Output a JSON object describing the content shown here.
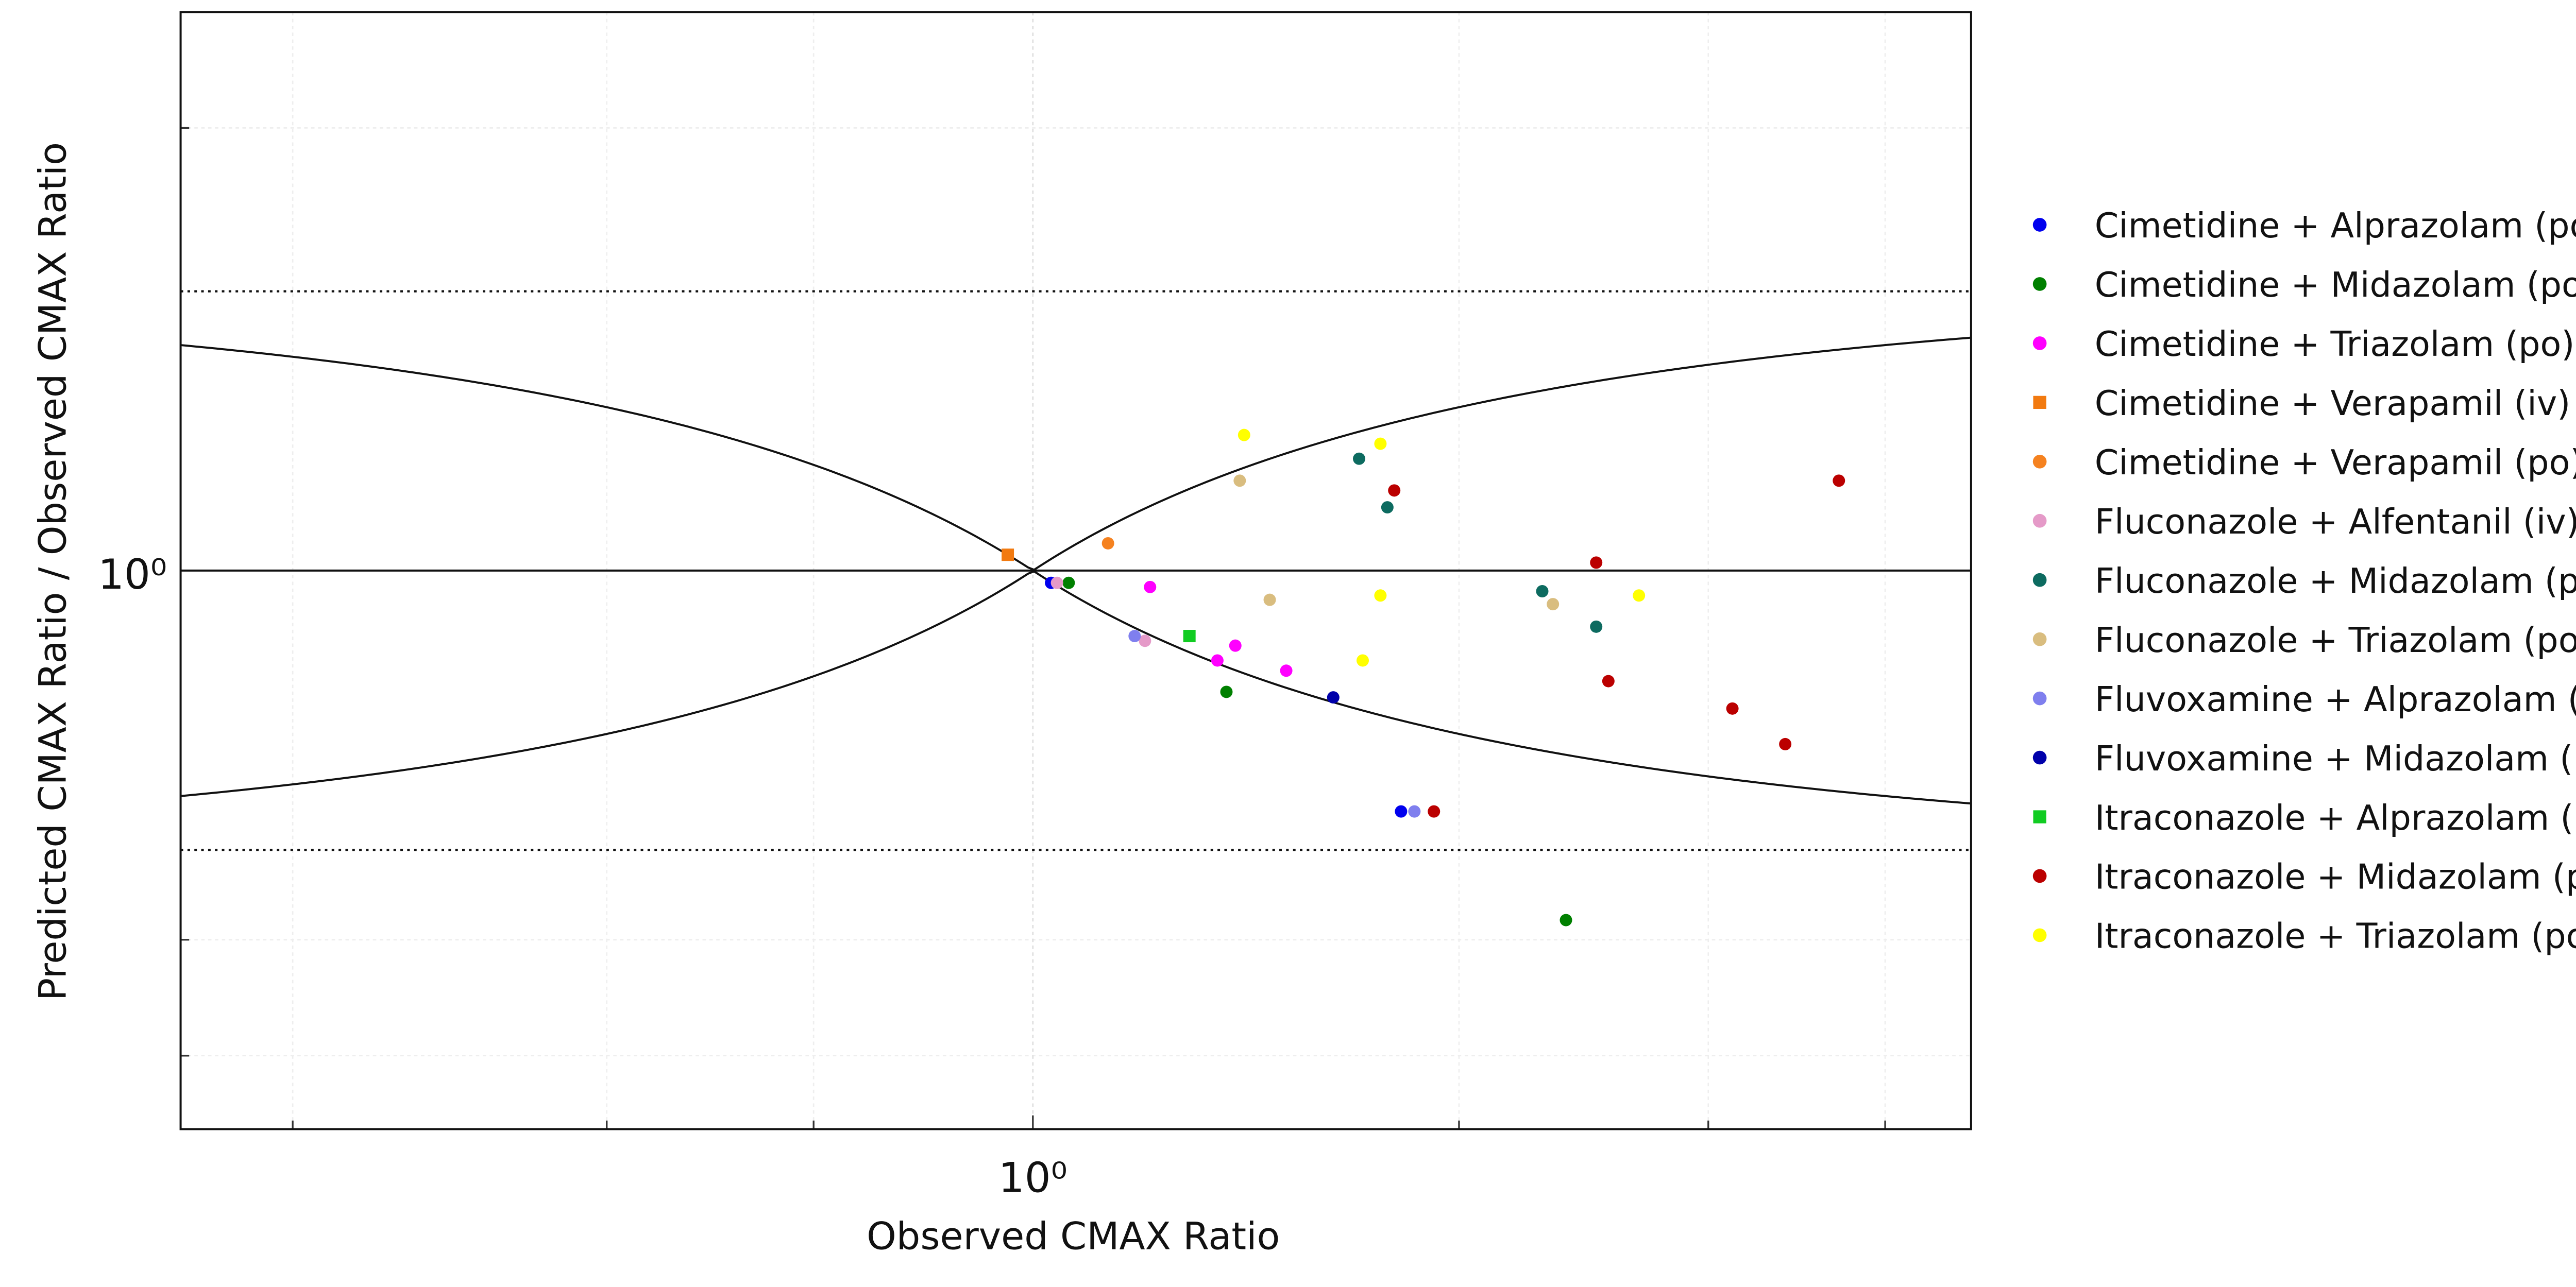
{
  "chart_data": {
    "type": "scatter",
    "x_label": "Observed CMAX Ratio",
    "y_label": "Predicted CMAX Ratio / Observed CMAX Ratio",
    "xscale": "log",
    "yscale": "log",
    "xlim": [
      0.25,
      4.6
    ],
    "ylim": [
      0.25,
      4
    ],
    "xticks": [
      {
        "value": 1,
        "label": "10⁰"
      }
    ],
    "yticks": [
      {
        "value": 1,
        "label": "10⁰"
      }
    ],
    "xminorticks": [
      0.3,
      0.5,
      0.7,
      2,
      3,
      4
    ],
    "yminorticks": [
      0.3,
      0.4,
      3
    ],
    "grid": true,
    "guest_limits": true,
    "hlines": [
      {
        "value": 1,
        "style": "solid"
      },
      {
        "value": 2,
        "style": "dotted"
      },
      {
        "value": 0.5,
        "style": "dotted"
      }
    ],
    "legend": "right",
    "series": [
      {
        "name": "Cimetidine + Alprazolam (po)",
        "color": "#0000ee",
        "marker": "circle",
        "x": [
          1.03,
          1.82
        ],
        "values": [
          0.97,
          0.55
        ]
      },
      {
        "name": "Cimetidine + Midazolam (po)",
        "color": "#008000",
        "marker": "circle",
        "x": [
          1.06,
          1.37,
          2.38
        ],
        "values": [
          0.97,
          0.74,
          0.42
        ]
      },
      {
        "name": "Cimetidine + Triazolam (po)",
        "color": "#ff00ff",
        "marker": "circle",
        "x": [
          1.21,
          1.39,
          1.35,
          1.51
        ],
        "values": [
          0.96,
          0.83,
          0.8,
          0.78
        ]
      },
      {
        "name": "Cimetidine + Verapamil (iv)",
        "color": "#f27a10",
        "marker": "square",
        "x": [
          0.96
        ],
        "values": [
          1.04
        ]
      },
      {
        "name": "Cimetidine + Verapamil (po)",
        "color": "#f58220",
        "marker": "circle",
        "x": [
          1.13
        ],
        "values": [
          1.07
        ]
      },
      {
        "name": "Fluconazole + Alfentanil (iv)",
        "color": "#e59ac8",
        "marker": "circle",
        "x": [
          1.04,
          1.2
        ],
        "values": [
          0.97,
          0.84
        ]
      },
      {
        "name": "Fluconazole + Midazolam (po)",
        "color": "#0d6b60",
        "marker": "circle",
        "x": [
          1.7,
          1.78,
          2.29,
          2.5
        ],
        "values": [
          1.32,
          1.17,
          0.95,
          0.87
        ]
      },
      {
        "name": "Fluconazole + Triazolam (po)",
        "color": "#d9bd7f",
        "marker": "circle",
        "x": [
          1.4,
          1.47,
          2.33
        ],
        "values": [
          1.25,
          0.93,
          0.92
        ]
      },
      {
        "name": "Fluvoxamine + Alprazolam (po)",
        "color": "#7f7fee",
        "marker": "circle",
        "x": [
          1.18,
          1.86
        ],
        "values": [
          0.85,
          0.55
        ]
      },
      {
        "name": "Fluvoxamine + Midazolam (po)",
        "color": "#0000aa",
        "marker": "circle",
        "x": [
          1.63
        ],
        "values": [
          0.73
        ]
      },
      {
        "name": "Itraconazole + Alprazolam (po)",
        "color": "#11cc22",
        "marker": "square",
        "x": [
          1.29
        ],
        "values": [
          0.85
        ]
      },
      {
        "name": "Itraconazole + Midazolam (po)",
        "color": "#bb0000",
        "marker": "circle",
        "x": [
          1.8,
          2.5,
          2.55,
          3.12,
          3.4,
          3.71,
          1.92
        ],
        "values": [
          1.22,
          1.02,
          0.76,
          0.71,
          0.65,
          1.25,
          0.55
        ]
      },
      {
        "name": "Itraconazole + Triazolam (po)",
        "color": "#ffff00",
        "marker": "circle",
        "x": [
          1.41,
          1.76,
          1.76,
          1.71,
          2.68
        ],
        "values": [
          1.4,
          1.37,
          0.94,
          0.8,
          0.94
        ]
      }
    ]
  }
}
